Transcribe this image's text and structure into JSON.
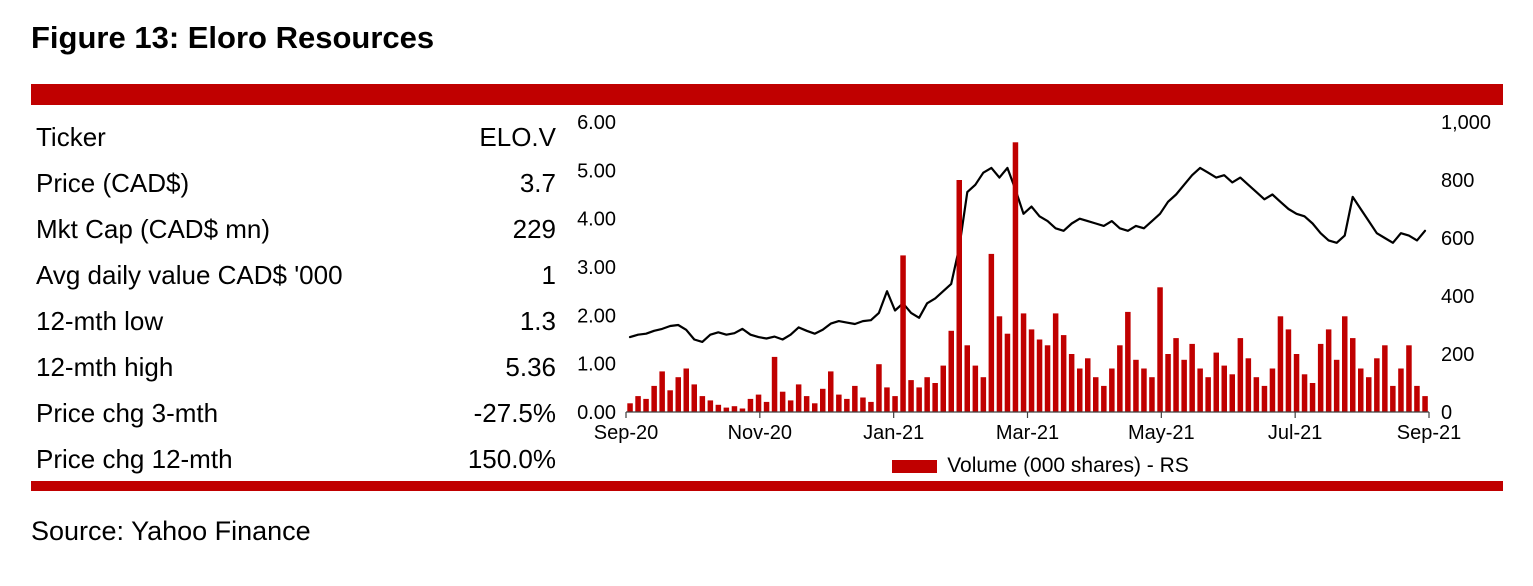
{
  "accent_color": "#C00000",
  "figure_title": "Figure 13: Eloro Resources",
  "source_note": "Source: Yahoo Finance",
  "stats_table": {
    "rows": [
      {
        "label": "Ticker",
        "value": "ELO.V"
      },
      {
        "label": "Price (CAD$)",
        "value": "3.7"
      },
      {
        "label": "Mkt Cap (CAD$ mn)",
        "value": "229"
      },
      {
        "label": "Avg daily value CAD$ '000",
        "value": "1"
      },
      {
        "label": "12-mth low",
        "value": "1.3"
      },
      {
        "label": "12-mth high",
        "value": "5.36"
      },
      {
        "label": "Price chg 3-mth",
        "value": "-27.5%"
      },
      {
        "label": "Price chg 12-mth",
        "value": "150.0%"
      }
    ]
  },
  "chart_data": {
    "type": "combo",
    "grid": false,
    "x_tick_labels": [
      "Sep-20",
      "Nov-20",
      "Jan-21",
      "Mar-21",
      "May-21",
      "Jul-21",
      "Sep-21"
    ],
    "left_axis": {
      "min": 0,
      "max": 6,
      "tick_labels": [
        "0.00",
        "1.00",
        "2.00",
        "3.00",
        "4.00",
        "5.00",
        "6.00"
      ]
    },
    "right_axis": {
      "min": 0,
      "max": 1000,
      "tick_labels": [
        "0",
        "200",
        "400",
        "600",
        "800",
        "1,000"
      ]
    },
    "legend": {
      "position": "bottom",
      "entries": [
        {
          "label": "Volume (000 shares) - RS",
          "color": "#C00000"
        }
      ]
    },
    "series": [
      {
        "name": "Price",
        "type": "line",
        "axis": "left",
        "color": "#000000",
        "values": [
          1.55,
          1.6,
          1.62,
          1.68,
          1.72,
          1.78,
          1.8,
          1.7,
          1.5,
          1.45,
          1.6,
          1.65,
          1.6,
          1.63,
          1.72,
          1.6,
          1.55,
          1.52,
          1.56,
          1.5,
          1.6,
          1.75,
          1.68,
          1.62,
          1.7,
          1.83,
          1.88,
          1.85,
          1.82,
          1.88,
          1.9,
          2.05,
          2.5,
          2.1,
          2.25,
          2.05,
          1.95,
          2.25,
          2.35,
          2.5,
          2.65,
          3.4,
          4.55,
          4.7,
          4.95,
          5.05,
          4.85,
          5.05,
          4.6,
          4.1,
          4.25,
          4.05,
          3.95,
          3.8,
          3.75,
          3.9,
          4.0,
          3.95,
          3.9,
          3.85,
          3.95,
          3.8,
          3.75,
          3.85,
          3.8,
          3.95,
          4.1,
          4.35,
          4.5,
          4.7,
          4.9,
          5.05,
          4.95,
          4.85,
          4.9,
          4.75,
          4.85,
          4.7,
          4.55,
          4.4,
          4.5,
          4.35,
          4.2,
          4.1,
          4.05,
          3.9,
          3.7,
          3.55,
          3.5,
          3.65,
          4.45,
          4.2,
          3.95,
          3.7,
          3.6,
          3.5,
          3.7,
          3.65,
          3.55,
          3.75
        ]
      },
      {
        "name": "Volume (000 shares) - RS",
        "type": "bar",
        "axis": "right",
        "color": "#C00000",
        "values": [
          30,
          55,
          45,
          90,
          140,
          75,
          120,
          150,
          95,
          55,
          40,
          25,
          15,
          20,
          12,
          45,
          60,
          35,
          190,
          70,
          40,
          95,
          55,
          30,
          80,
          140,
          60,
          45,
          90,
          50,
          35,
          165,
          85,
          55,
          540,
          110,
          85,
          120,
          100,
          160,
          280,
          800,
          230,
          160,
          120,
          545,
          330,
          270,
          930,
          340,
          285,
          250,
          230,
          340,
          265,
          200,
          150,
          185,
          120,
          90,
          150,
          230,
          345,
          180,
          150,
          120,
          430,
          200,
          255,
          180,
          235,
          150,
          120,
          205,
          160,
          130,
          255,
          185,
          120,
          90,
          150,
          330,
          285,
          200,
          130,
          100,
          235,
          285,
          180,
          330,
          255,
          150,
          120,
          185,
          230,
          90,
          150,
          230,
          90,
          55
        ]
      }
    ]
  }
}
